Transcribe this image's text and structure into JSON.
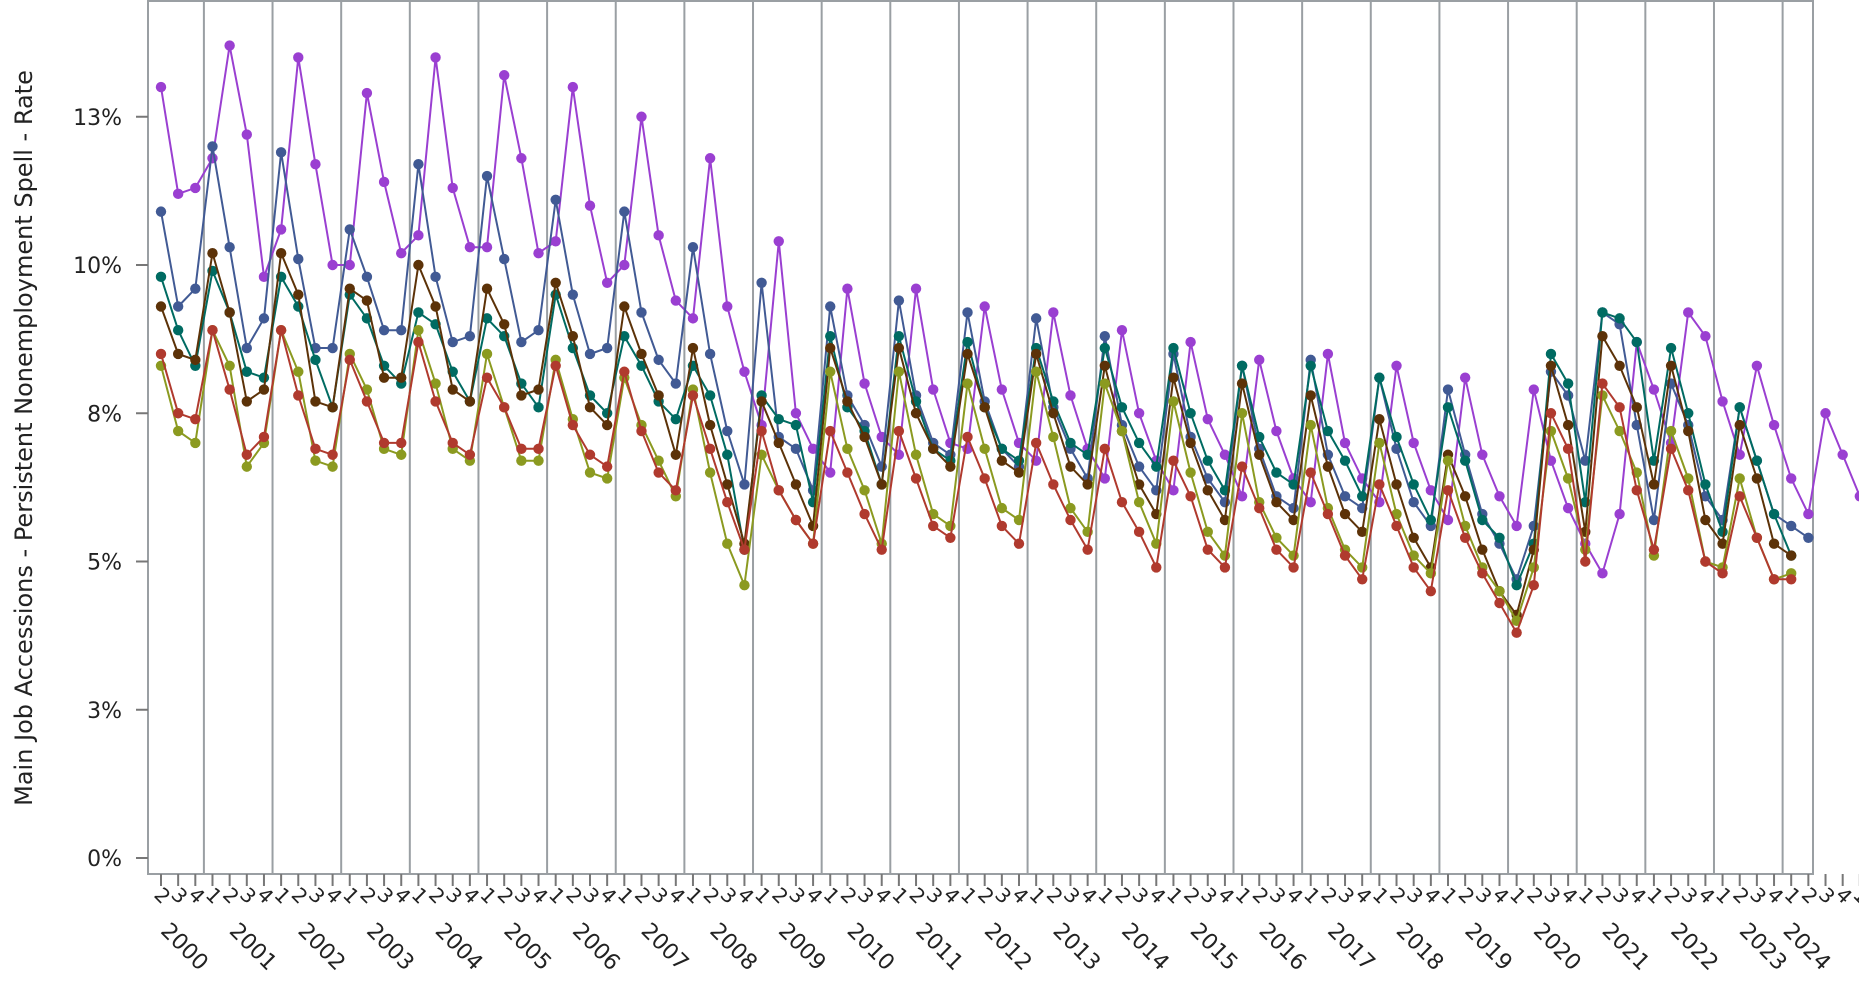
{
  "chart_data": {
    "type": "line",
    "title": "",
    "xlabel": "",
    "ylabel": "Main Job Accessions - Persistent Nonemployment Spell - Rate",
    "y_tick_values": [
      0,
      2.5,
      5,
      7.5,
      10,
      12.5
    ],
    "y_tick_labels": [
      "0%",
      "3%",
      "5%",
      "8%",
      "10%",
      "13%"
    ],
    "ylim": [
      0,
      14.5
    ],
    "grid": "vertical year separators",
    "legend": "none",
    "first_quarter": "2000-Q2",
    "quarter_labels": [
      "1",
      "2",
      "3",
      "4"
    ],
    "years": [
      "2000",
      "2001",
      "2002",
      "2003",
      "2004",
      "2005",
      "2006",
      "2007",
      "2008",
      "2009",
      "2010",
      "2011",
      "2012",
      "2013",
      "2014",
      "2015",
      "2016",
      "2017",
      "2018",
      "2019",
      "2020",
      "2021",
      "2022",
      "2023",
      "2024"
    ],
    "series": [
      {
        "color": "#9a3fd1",
        "values": [
          13.0,
          11.2,
          11.3,
          11.8,
          13.7,
          12.2,
          9.8,
          10.6,
          13.5,
          11.7,
          10.0,
          10.0,
          12.9,
          11.4,
          10.2,
          10.5,
          13.5,
          11.3,
          10.3,
          10.3,
          13.2,
          11.8,
          10.2,
          10.4,
          13.0,
          11.0,
          9.7,
          10.0,
          12.5,
          10.5,
          9.4,
          9.1,
          11.8,
          9.3,
          8.2,
          7.3,
          10.4,
          7.5,
          6.9,
          6.5,
          9.6,
          8.0,
          7.1,
          6.8,
          9.6,
          7.9,
          7.0,
          6.9,
          9.3,
          7.9,
          7.0,
          6.7,
          9.2,
          7.8,
          6.9,
          6.4,
          8.9,
          7.5,
          6.7,
          6.2,
          8.7,
          7.4,
          6.8,
          6.1,
          8.4,
          7.2,
          6.4,
          6.0,
          8.5,
          7.0,
          6.4,
          6.0,
          8.3,
          7.0,
          6.2,
          5.7,
          8.1,
          6.8,
          6.1,
          5.6,
          7.9,
          6.7,
          5.9,
          5.3,
          4.8,
          5.8,
          8.7,
          7.9,
          7.0,
          9.2,
          8.8,
          7.7,
          6.8,
          8.3,
          7.3,
          6.4,
          5.8,
          7.5,
          6.8,
          6.1,
          5.8,
          5.4
        ]
      },
      {
        "color": "#415a94",
        "values": [
          10.9,
          9.3,
          9.6,
          12.0,
          10.3,
          8.6,
          9.1,
          11.9,
          10.1,
          8.6,
          8.6,
          10.6,
          9.8,
          8.9,
          8.9,
          11.7,
          9.8,
          8.7,
          8.8,
          11.5,
          10.1,
          8.7,
          8.9,
          11.1,
          9.5,
          8.5,
          8.6,
          10.9,
          9.2,
          8.4,
          8.0,
          10.3,
          8.5,
          7.2,
          6.3,
          9.7,
          7.1,
          6.9,
          6.2,
          9.3,
          7.8,
          7.3,
          6.6,
          9.4,
          7.8,
          7.0,
          6.8,
          9.2,
          7.7,
          6.9,
          6.6,
          9.1,
          7.6,
          6.9,
          6.4,
          8.8,
          7.3,
          6.6,
          6.2,
          8.5,
          7.1,
          6.4,
          6.0,
          8.3,
          6.9,
          6.1,
          5.9,
          8.4,
          6.8,
          6.1,
          5.9,
          8.1,
          6.9,
          6.0,
          5.6,
          7.9,
          6.8,
          5.8,
          5.3,
          4.7,
          5.6,
          8.2,
          7.8,
          6.7,
          9.2,
          9.0,
          7.3,
          5.7,
          8.0,
          7.3,
          6.1,
          5.7,
          7.6,
          6.7,
          5.8,
          5.6,
          5.4
        ]
      },
      {
        "color": "#006b62",
        "values": [
          9.8,
          8.9,
          8.3,
          9.9,
          9.2,
          8.2,
          8.1,
          9.8,
          9.3,
          8.4,
          7.6,
          9.5,
          9.1,
          8.3,
          8.0,
          9.2,
          9.0,
          8.2,
          7.7,
          9.1,
          8.8,
          8.0,
          7.6,
          9.5,
          8.6,
          7.8,
          7.5,
          8.8,
          8.3,
          7.7,
          7.4,
          8.3,
          7.8,
          6.8,
          5.2,
          7.8,
          7.4,
          7.3,
          6.0,
          8.8,
          7.6,
          7.2,
          6.3,
          8.8,
          7.7,
          6.9,
          6.7,
          8.7,
          7.6,
          6.9,
          6.7,
          8.6,
          7.7,
          7.0,
          6.8,
          8.6,
          7.6,
          7.0,
          6.6,
          8.6,
          7.5,
          6.7,
          6.2,
          8.3,
          7.1,
          6.5,
          6.3,
          8.3,
          7.2,
          6.7,
          6.1,
          8.1,
          7.1,
          6.3,
          5.7,
          7.6,
          6.7,
          5.7,
          5.4,
          4.6,
          5.3,
          8.5,
          8.0,
          6.0,
          9.2,
          9.1,
          8.7,
          6.7,
          8.6,
          7.5,
          6.3,
          5.5,
          7.6,
          6.7,
          5.8,
          5.1
        ]
      },
      {
        "color": "#5c3208",
        "values": [
          9.3,
          8.5,
          8.4,
          10.2,
          9.2,
          7.7,
          7.9,
          10.2,
          9.5,
          7.7,
          7.6,
          9.6,
          9.4,
          8.1,
          8.1,
          10.0,
          9.3,
          7.9,
          7.7,
          9.6,
          9.0,
          7.8,
          7.9,
          9.7,
          8.8,
          7.6,
          7.3,
          9.3,
          8.5,
          7.8,
          6.8,
          8.6,
          7.3,
          6.3,
          5.3,
          7.7,
          7.0,
          6.3,
          5.6,
          8.6,
          7.7,
          7.1,
          6.3,
          8.6,
          7.5,
          6.9,
          6.6,
          8.5,
          7.6,
          6.7,
          6.5,
          8.5,
          7.5,
          6.6,
          6.3,
          8.3,
          7.2,
          6.3,
          5.8,
          8.1,
          7.0,
          6.2,
          5.7,
          8.0,
          6.8,
          6.0,
          5.7,
          7.8,
          6.6,
          5.8,
          5.5,
          7.4,
          6.3,
          5.4,
          4.9,
          6.8,
          6.1,
          5.2,
          4.5,
          4.1,
          5.2,
          8.3,
          7.3,
          5.5,
          8.8,
          8.3,
          7.6,
          6.3,
          8.3,
          7.2,
          5.7,
          5.3,
          7.3,
          6.4,
          5.3,
          5.1
        ]
      },
      {
        "color": "#8b9a20",
        "values": [
          8.3,
          7.2,
          7.0,
          8.9,
          8.3,
          6.6,
          7.0,
          8.9,
          8.2,
          6.7,
          6.6,
          8.5,
          7.9,
          6.9,
          6.8,
          8.9,
          8.0,
          6.9,
          6.7,
          8.5,
          7.6,
          6.7,
          6.7,
          8.4,
          7.4,
          6.5,
          6.4,
          8.1,
          7.3,
          6.7,
          6.1,
          7.9,
          6.5,
          5.3,
          4.6,
          6.8,
          6.2,
          5.7,
          5.3,
          8.2,
          6.9,
          6.2,
          5.3,
          8.2,
          6.8,
          5.8,
          5.6,
          8.0,
          6.9,
          5.9,
          5.7,
          8.2,
          7.1,
          5.9,
          5.5,
          8.0,
          7.2,
          6.0,
          5.3,
          7.7,
          6.5,
          5.5,
          5.1,
          7.5,
          6.0,
          5.4,
          5.1,
          7.3,
          5.9,
          5.2,
          4.9,
          7.0,
          5.8,
          5.1,
          4.8,
          6.7,
          5.6,
          4.9,
          4.5,
          4.0,
          4.9,
          7.2,
          6.4,
          5.2,
          7.8,
          7.2,
          6.5,
          5.1,
          7.2,
          6.4,
          5.0,
          4.9,
          6.4,
          5.4,
          4.7,
          4.8
        ]
      },
      {
        "color": "#b03a2e",
        "values": [
          8.5,
          7.5,
          7.4,
          8.9,
          7.9,
          6.8,
          7.1,
          8.9,
          7.8,
          6.9,
          6.8,
          8.4,
          7.7,
          7.0,
          7.0,
          8.7,
          7.7,
          7.0,
          6.8,
          8.1,
          7.6,
          6.9,
          6.9,
          8.3,
          7.3,
          6.8,
          6.6,
          8.2,
          7.2,
          6.5,
          6.2,
          7.8,
          6.9,
          6.0,
          5.2,
          7.2,
          6.2,
          5.7,
          5.3,
          7.2,
          6.5,
          5.8,
          5.2,
          7.2,
          6.4,
          5.6,
          5.4,
          7.1,
          6.4,
          5.6,
          5.3,
          7.0,
          6.3,
          5.7,
          5.2,
          6.9,
          6.0,
          5.5,
          4.9,
          6.7,
          6.1,
          5.2,
          4.9,
          6.6,
          5.9,
          5.2,
          4.9,
          6.5,
          5.8,
          5.1,
          4.7,
          6.3,
          5.6,
          4.9,
          4.5,
          6.2,
          5.4,
          4.8,
          4.3,
          3.8,
          4.6,
          7.5,
          6.9,
          5.0,
          8.0,
          7.6,
          6.2,
          5.2,
          6.9,
          6.2,
          5.0,
          4.8,
          6.1,
          5.4,
          4.7,
          4.7
        ]
      }
    ]
  }
}
